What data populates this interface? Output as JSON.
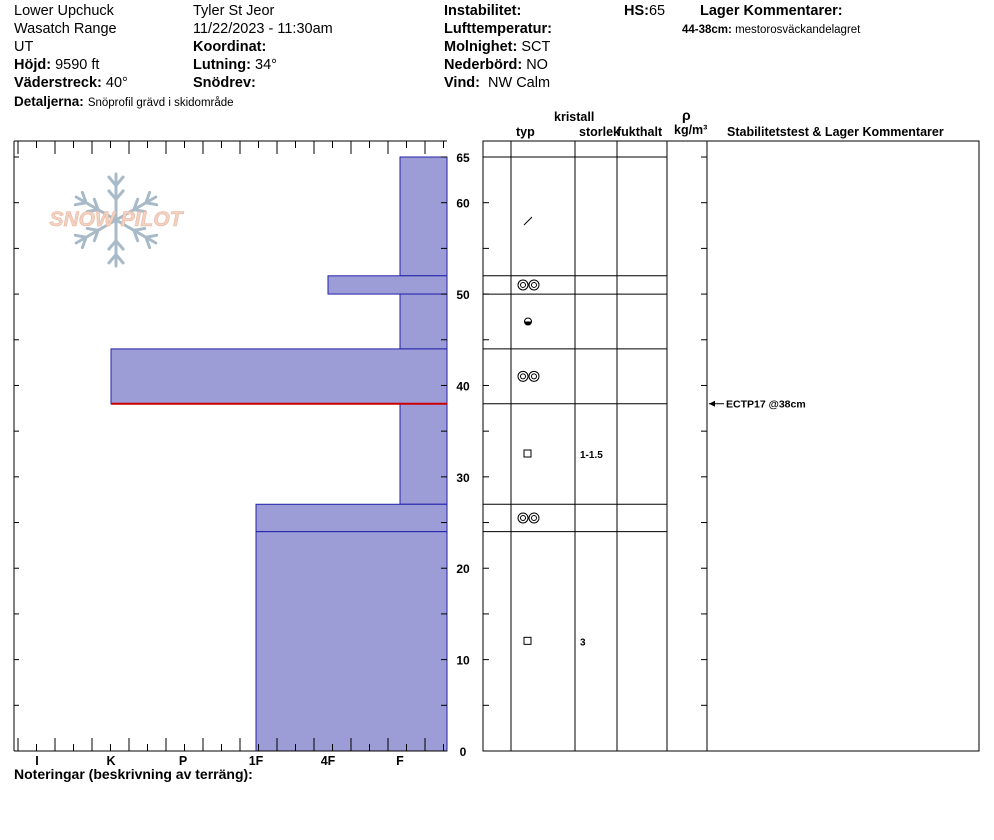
{
  "header": {
    "location": "Lower Upchuck",
    "range": "Wasatch Range",
    "state": "UT",
    "elevation_label": "Höjd:",
    "elevation_value": "9590 ft",
    "aspect_label": "Väderstreck:",
    "aspect_value": "40°",
    "details_label": "Detaljerna:",
    "details_value": "Snöprofil grävd i skidområde",
    "observer": "Tyler St Jeor",
    "datetime": "11/22/2023 - 11:30am",
    "coordinate_label": "Koordinat:",
    "coordinate_value": "",
    "slope_label": "Lutning:",
    "slope_value": "34°",
    "drift_label": "Snödrev:",
    "drift_value": "",
    "instability_label": "Instabilitet:",
    "instability_value": "",
    "air_temp_label": "Lufttemperatur:",
    "air_temp_value": "",
    "sky_label": "Molnighet:",
    "sky_value": "SCT",
    "precip_label": "Nederbörd:",
    "precip_value": "NO",
    "wind_label": "Vind:",
    "wind_value": "NW Calm",
    "hs_label": "HS:",
    "hs_value": "65",
    "layer_comments_label": "Lager Kommentarer:",
    "layer_comment_depth": "44-38cm:",
    "layer_comment_text": "mestorosväckandelagret"
  },
  "logo": {
    "text": "SNOW PILOT"
  },
  "columns": {
    "crystal_label": "kristall",
    "type_label": "typ",
    "size_label": "storlek",
    "moisture_label": "fukthalt",
    "density_symbol": "ρ",
    "density_unit": "kg/m³",
    "stability_label": "Stabilitetstest & Lager Kommentarer"
  },
  "footer": {
    "notes_label": "Noteringar (beskrivning av terräng):"
  },
  "stability_tests": [
    {
      "text": "ECTP17 @38cm",
      "depth_cm": 38
    }
  ],
  "colors": {
    "hardness_fill": "#9c9cd6",
    "hardness_stroke": "#2222aa",
    "weak_layer": "#cc0000",
    "logo_text": "#f1d2c2",
    "logo_flake": "#a8bac8"
  },
  "chart_data": {
    "type": "hardness_profile",
    "ylim": [
      0,
      65
    ],
    "y_unit": "cm",
    "y_ticks": [
      0,
      10,
      20,
      30,
      40,
      50,
      60,
      65
    ],
    "hardness_scale": [
      "I",
      "K",
      "P",
      "1F",
      "4F",
      "F"
    ],
    "layers": [
      {
        "top": 65,
        "bottom": 52,
        "hardness": "F"
      },
      {
        "top": 52,
        "bottom": 50,
        "hardness": "4F",
        "grain": "rounding-facets"
      },
      {
        "top": 50,
        "bottom": 44,
        "hardness": "F",
        "grain": "graupel"
      },
      {
        "top": 44,
        "bottom": 38,
        "hardness": "K",
        "grain": "rounding-facets"
      },
      {
        "top": 38,
        "bottom": 27,
        "hardness": "F",
        "grain": "facets",
        "size": "1-1.5"
      },
      {
        "top": 27,
        "bottom": 24,
        "hardness": "1F",
        "grain": "rounding-facets"
      },
      {
        "top": 24,
        "bottom": 0,
        "hardness": "1F",
        "grain": "facets",
        "size": "3"
      }
    ],
    "weak_layer_depth": 38,
    "precip_particle_height": 58
  }
}
